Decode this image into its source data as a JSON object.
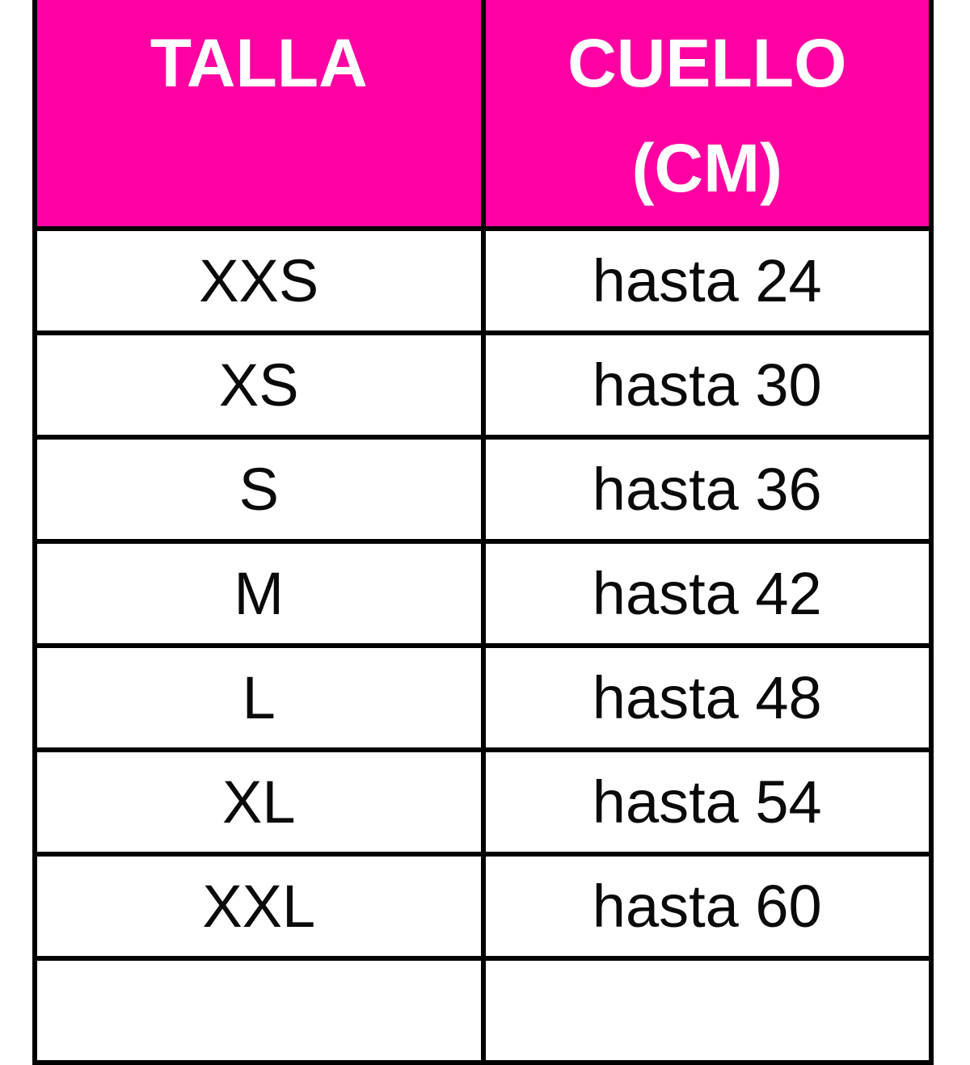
{
  "table": {
    "header": {
      "col1": "TALLA",
      "col2_line1": "CUELLO",
      "col2_line2": "(CM)"
    },
    "rows": [
      {
        "size": "XXS",
        "neck": "hasta 24"
      },
      {
        "size": "XS",
        "neck": "hasta 30"
      },
      {
        "size": "S",
        "neck": "hasta 36"
      },
      {
        "size": "M",
        "neck": "hasta 42"
      },
      {
        "size": "L",
        "neck": "hasta 48"
      },
      {
        "size": "XL",
        "neck": "hasta 54"
      },
      {
        "size": "XXL",
        "neck": "hasta 60"
      }
    ],
    "partial_row": {
      "size": "",
      "neck": ""
    }
  },
  "colors": {
    "header_background": "#FF00A2",
    "header_text": "#FFFFFF",
    "border": "#000000",
    "cell_text": "#0A0A0A",
    "page_background": "#FFFFFF"
  },
  "chart_data": {
    "type": "table",
    "title": "",
    "columns": [
      "TALLA",
      "CUELLO (CM)"
    ],
    "rows": [
      [
        "XXS",
        "hasta 24"
      ],
      [
        "XS",
        "hasta 30"
      ],
      [
        "S",
        "hasta 36"
      ],
      [
        "M",
        "hasta 42"
      ],
      [
        "L",
        "hasta 48"
      ],
      [
        "XL",
        "hasta 54"
      ],
      [
        "XXL",
        "hasta 60"
      ]
    ],
    "layout_hints": {
      "header_style": "magenta background, white bold text",
      "grid": "on, thick black borders",
      "bottom_row_truncated": true,
      "top_border_cropped": true
    }
  }
}
